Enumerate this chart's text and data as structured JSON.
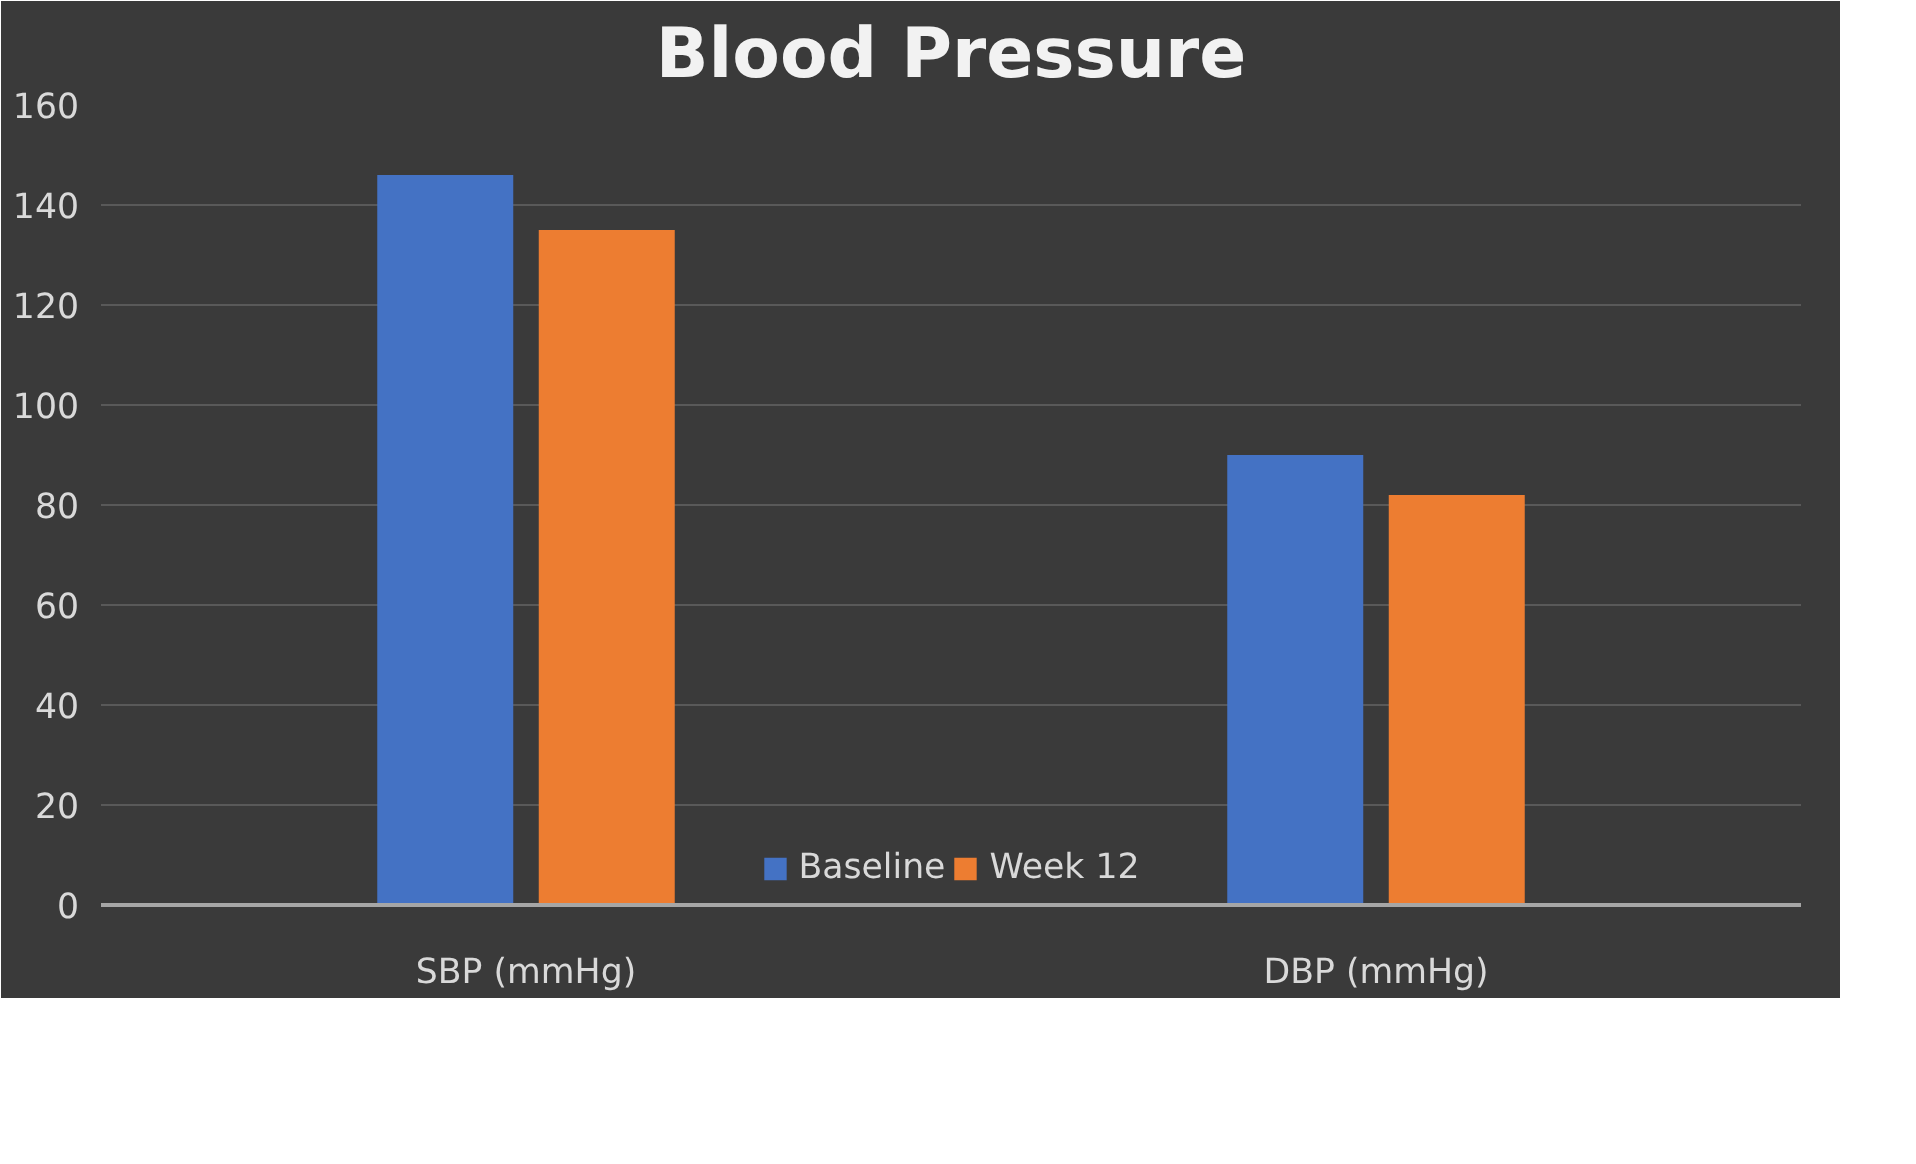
{
  "chart_data": {
    "type": "bar",
    "title": "Blood Pressure",
    "categories": [
      "SBP (mmHg)",
      "DBP (mmHg)"
    ],
    "series": [
      {
        "name": "Baseline",
        "color": "#4472c4",
        "values": [
          146,
          90
        ]
      },
      {
        "name": "Week 12",
        "color": "#ed7d31",
        "values": [
          135,
          82
        ]
      }
    ],
    "ylim": [
      0,
      160
    ],
    "yticks": [
      0,
      20,
      40,
      60,
      80,
      100,
      120,
      140,
      160
    ],
    "grid": "y",
    "legend": "bottom"
  }
}
